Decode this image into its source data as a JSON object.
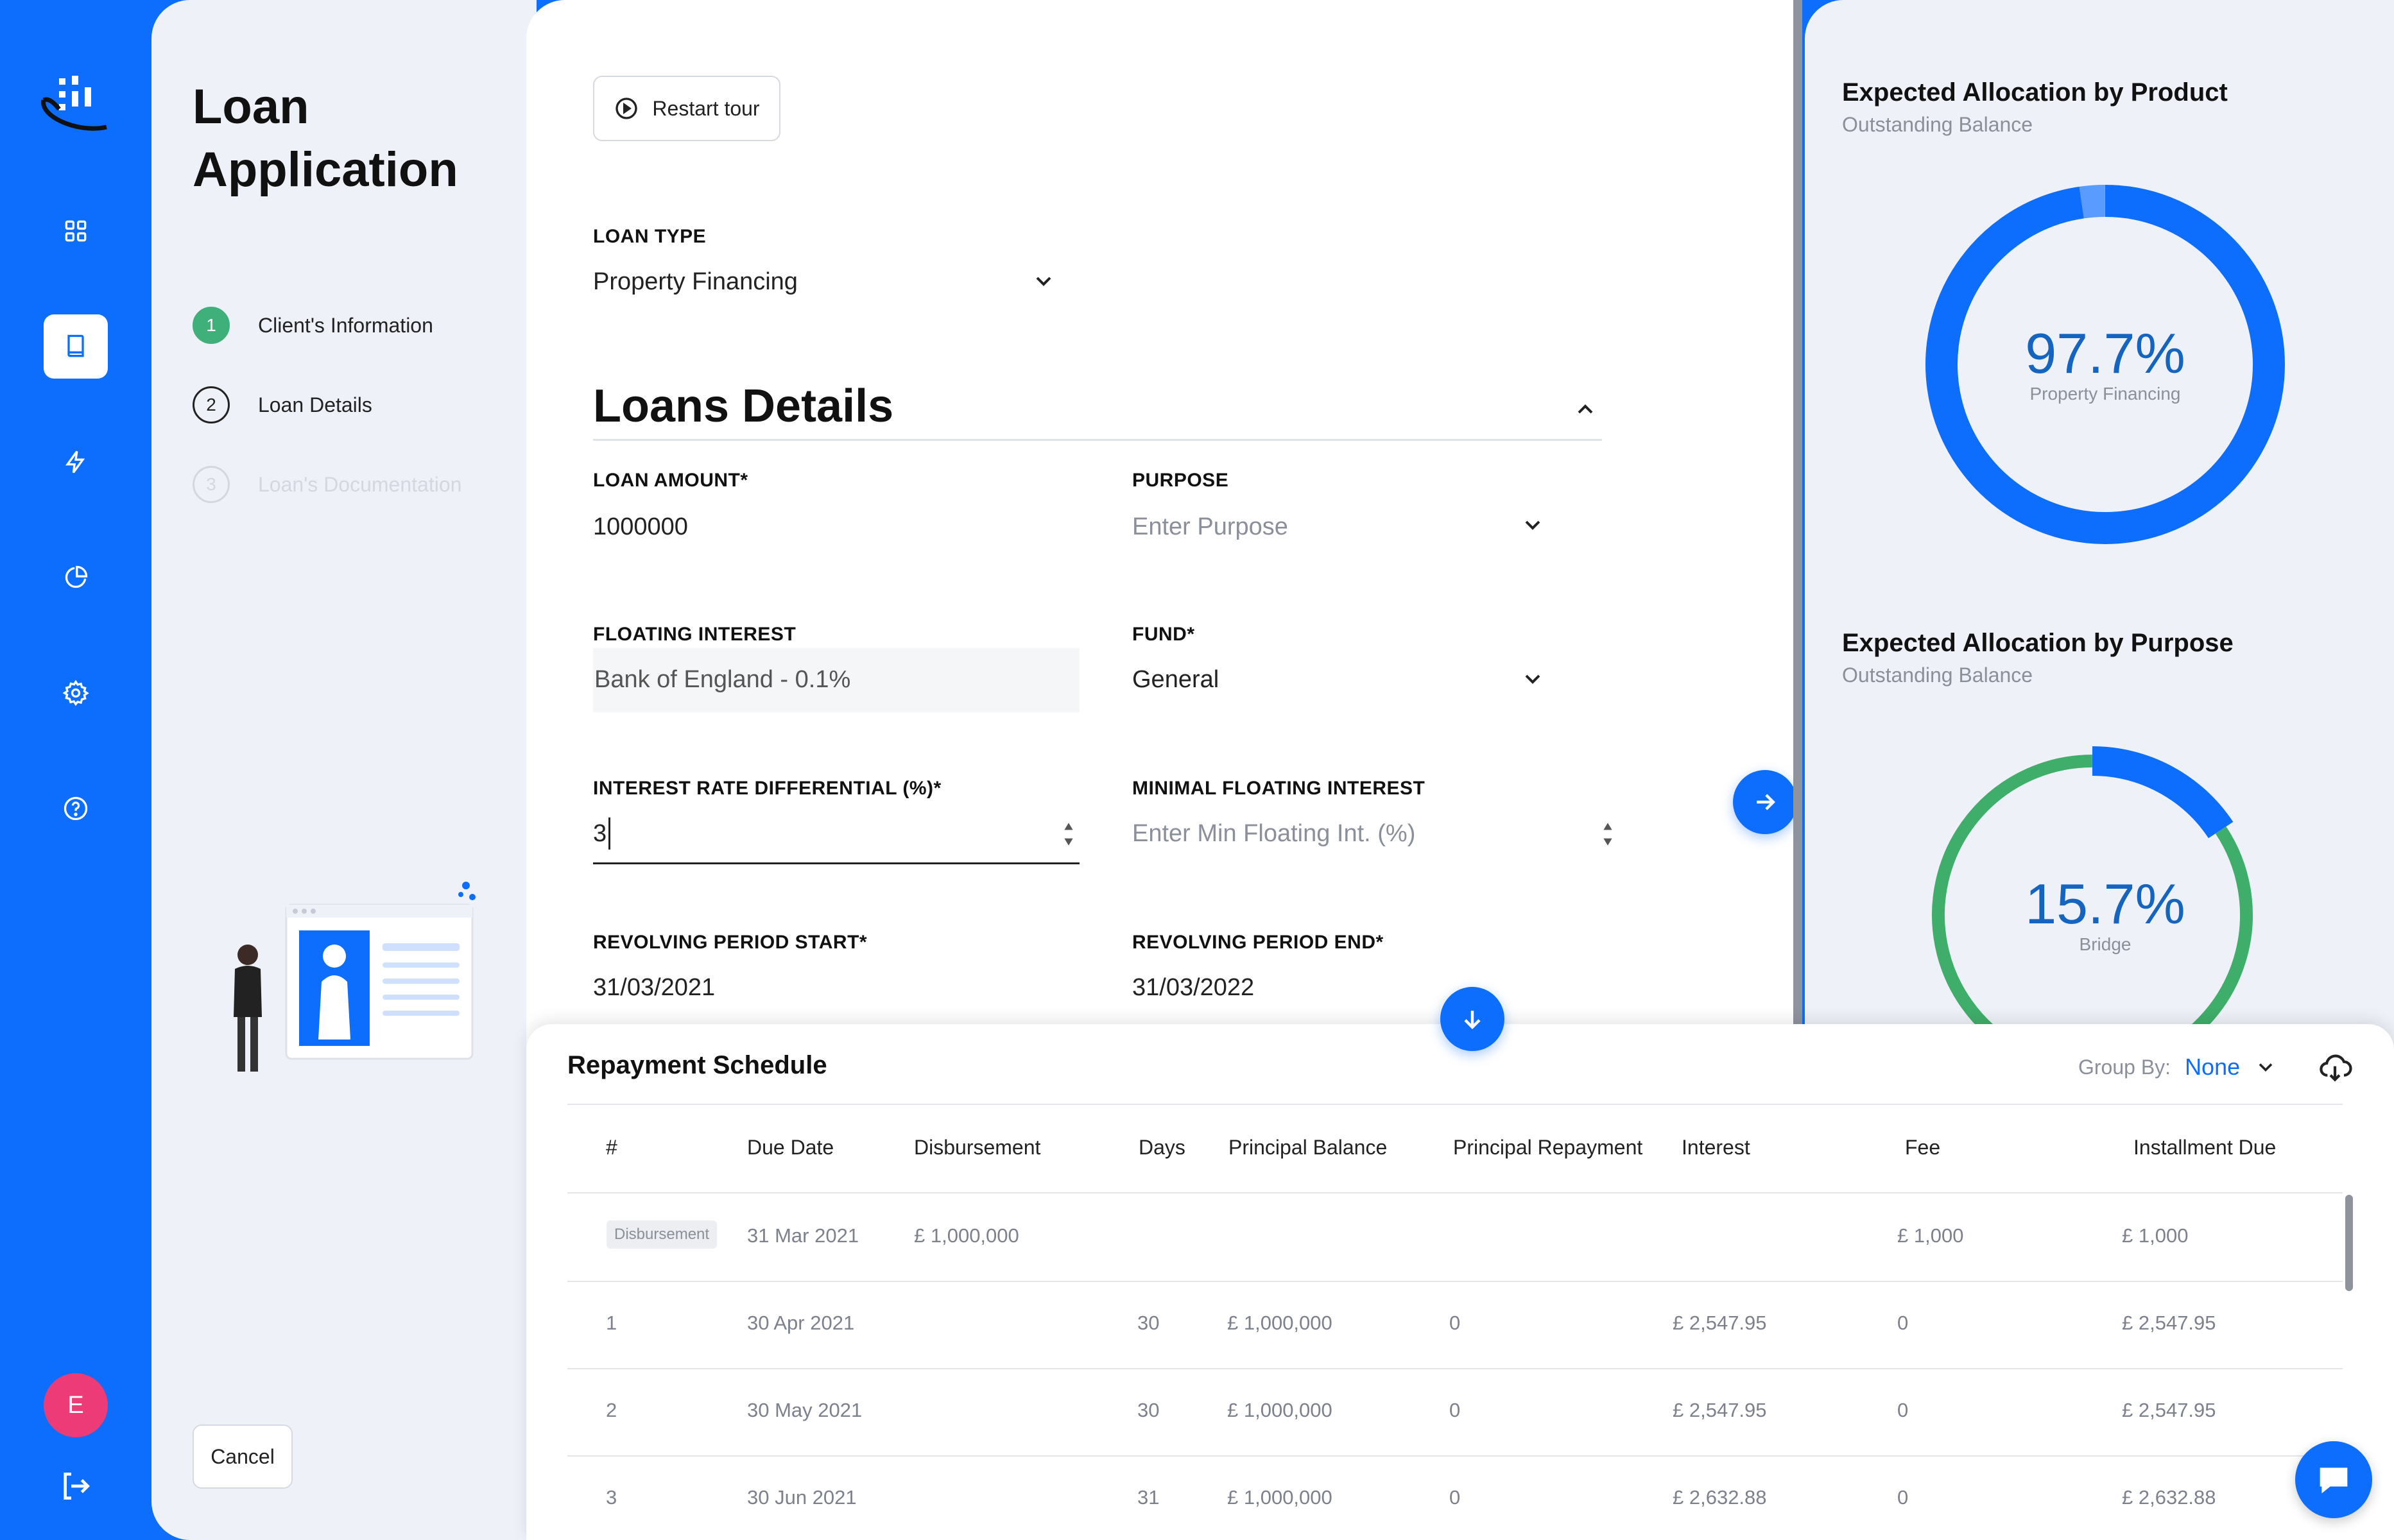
{
  "steps_panel": {
    "title": "Loan Application",
    "steps": [
      {
        "num": "1",
        "label": "Client's Information",
        "state": "done"
      },
      {
        "num": "2",
        "label": "Loan Details",
        "state": "current"
      },
      {
        "num": "3",
        "label": "Loan's Documentation",
        "state": "pending"
      }
    ],
    "cancel_label": "Cancel"
  },
  "sidebar": {
    "avatar_initial": "E",
    "icons": [
      "dashboard-icon",
      "book-icon",
      "lightning-icon",
      "pie-chart-icon",
      "gear-icon",
      "help-icon",
      "logout-icon"
    ]
  },
  "form": {
    "restart_tour_label": "Restart tour",
    "loan_type": {
      "label": "LOAN TYPE",
      "value": "Property Financing"
    },
    "section_title": "Loans Details",
    "loan_amount": {
      "label": "LOAN AMOUNT*",
      "value": "1000000"
    },
    "purpose": {
      "label": "PURPOSE",
      "placeholder": "Enter Purpose"
    },
    "floating_interest": {
      "label": "FLOATING INTEREST",
      "value": "Bank of England - 0.1%"
    },
    "fund": {
      "label": "FUND*",
      "value": "General"
    },
    "interest_rate_differential": {
      "label": "INTEREST RATE DIFFERENTIAL (%)*",
      "value": "3"
    },
    "minimal_floating_interest": {
      "label": "MINIMAL FLOATING INTEREST",
      "placeholder": "Enter Min Floating Int. (%)"
    },
    "revolving_start": {
      "label": "REVOLVING PERIOD START*",
      "value": "31/03/2021"
    },
    "revolving_end": {
      "label": "REVOLVING PERIOD END*",
      "value": "31/03/2022"
    }
  },
  "allocation": {
    "product": {
      "title": "Expected Allocation by Product",
      "subtitle": "Outstanding Balance",
      "percent": "97.7%",
      "category": "Property Financing",
      "fraction": 0.977,
      "color": "#0d6efd"
    },
    "purpose": {
      "title": "Expected Allocation by Purpose",
      "subtitle": "Outstanding Balance",
      "percent": "15.7%",
      "category": "Bridge",
      "fraction": 0.157,
      "color": "#0d6efd",
      "rest_color": "#3fae6a"
    }
  },
  "schedule": {
    "title": "Repayment Schedule",
    "group_by_label": "Group By:",
    "group_by_value": "None",
    "columns": [
      "#",
      "Due Date",
      "Disbursement",
      "Days",
      "Principal Balance",
      "Principal Repayment",
      "Interest",
      "Fee",
      "Installment Due"
    ],
    "disbursement_row": {
      "badge": "Disbursement",
      "due_date": "31 Mar 2021",
      "disbursement": "£ 1,000,000",
      "fee": "£ 1,000",
      "installment": "£ 1,000"
    },
    "rows": [
      {
        "num": "1",
        "due_date": "30 Apr 2021",
        "days": "30",
        "principal_balance": "£ 1,000,000",
        "principal_repayment": "0",
        "interest": "£ 2,547.95",
        "fee": "0",
        "installment": "£ 2,547.95"
      },
      {
        "num": "2",
        "due_date": "30 May 2021",
        "days": "30",
        "principal_balance": "£ 1,000,000",
        "principal_repayment": "0",
        "interest": "£ 2,547.95",
        "fee": "0",
        "installment": "£ 2,547.95"
      },
      {
        "num": "3",
        "due_date": "30 Jun 2021",
        "days": "31",
        "principal_balance": "£ 1,000,000",
        "principal_repayment": "0",
        "interest": "£ 2,632.88",
        "fee": "0",
        "installment": "£ 2,632.88"
      }
    ]
  }
}
